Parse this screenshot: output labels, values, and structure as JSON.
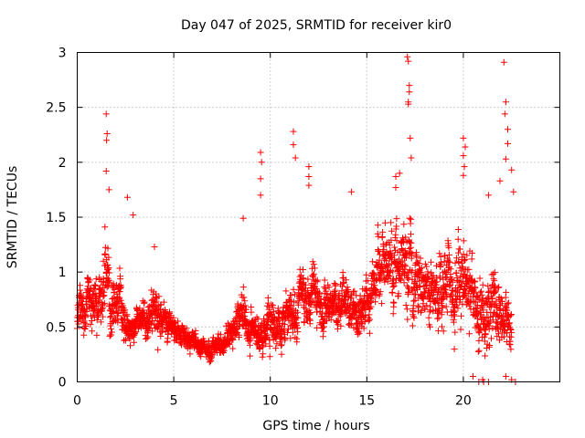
{
  "chart_data": {
    "type": "scatter",
    "title": "Day 047 of 2025, SRMTID for receiver kir0",
    "xlabel": "GPS time / hours",
    "ylabel": "SRMTID / TECUs",
    "xlim": [
      0,
      25
    ],
    "ylim": [
      0,
      3
    ],
    "grid": true,
    "marker": "+",
    "color": "#ff0000",
    "xtick_values": [
      0,
      5,
      10,
      15,
      20
    ],
    "xtick_labels": [
      "0",
      "5",
      "10",
      "15",
      "20"
    ],
    "ytick_values": [
      0,
      0.5,
      1,
      1.5,
      2,
      2.5,
      3
    ],
    "ytick_labels": [
      "0",
      "0.5",
      "1",
      "1.5",
      "2",
      "2.5",
      "3"
    ],
    "sample_interval_hours": 0.0083,
    "series": [
      {
        "name": "kir0",
        "profile_hours": [
          0,
          0.5,
          1,
          1.5,
          2,
          2.5,
          3,
          3.5,
          4,
          4.5,
          5,
          5.5,
          6,
          6.5,
          7,
          7.5,
          8,
          8.5,
          9,
          9.5,
          10,
          10.5,
          11,
          11.5,
          12,
          12.5,
          13,
          13.5,
          14,
          14.5,
          15,
          15.5,
          16,
          16.5,
          17,
          17.5,
          18,
          18.5,
          19,
          19.5,
          20,
          20.5,
          21,
          21.5,
          22,
          22.5
        ],
        "profile_mean": [
          0.6,
          0.7,
          0.8,
          0.85,
          0.75,
          0.6,
          0.5,
          0.55,
          0.7,
          0.55,
          0.45,
          0.42,
          0.38,
          0.32,
          0.3,
          0.35,
          0.5,
          0.65,
          0.55,
          0.45,
          0.55,
          0.55,
          0.6,
          0.7,
          0.8,
          0.75,
          0.7,
          0.75,
          0.7,
          0.6,
          0.75,
          0.9,
          1.0,
          1.1,
          1.05,
          0.95,
          0.8,
          0.85,
          0.9,
          0.95,
          0.9,
          0.8,
          0.6,
          0.7,
          0.5,
          0.5
        ],
        "profile_spread": [
          0.25,
          0.3,
          0.35,
          0.45,
          0.35,
          0.25,
          0.2,
          0.2,
          0.3,
          0.2,
          0.15,
          0.14,
          0.12,
          0.1,
          0.1,
          0.12,
          0.22,
          0.3,
          0.25,
          0.2,
          0.25,
          0.25,
          0.3,
          0.3,
          0.3,
          0.3,
          0.3,
          0.3,
          0.3,
          0.25,
          0.3,
          0.4,
          0.45,
          0.5,
          0.5,
          0.45,
          0.4,
          0.4,
          0.45,
          0.5,
          0.5,
          0.45,
          0.4,
          0.45,
          0.3,
          0.3
        ],
        "outliers": [
          [
            1.5,
            2.44
          ],
          [
            1.55,
            2.26
          ],
          [
            1.52,
            2.2
          ],
          [
            1.5,
            1.92
          ],
          [
            1.65,
            1.75
          ],
          [
            2.6,
            1.68
          ],
          [
            2.9,
            1.52
          ],
          [
            4.0,
            1.23
          ],
          [
            8.6,
            1.49
          ],
          [
            9.5,
            2.09
          ],
          [
            9.55,
            2.0
          ],
          [
            9.5,
            1.85
          ],
          [
            9.5,
            1.7
          ],
          [
            11.2,
            2.28
          ],
          [
            11.2,
            2.16
          ],
          [
            11.3,
            2.04
          ],
          [
            12.0,
            1.96
          ],
          [
            12.0,
            1.87
          ],
          [
            12.0,
            1.79
          ],
          [
            14.2,
            1.73
          ],
          [
            17.1,
            2.96
          ],
          [
            17.15,
            2.92
          ],
          [
            17.2,
            2.7
          ],
          [
            17.2,
            2.64
          ],
          [
            17.15,
            2.55
          ],
          [
            17.15,
            2.53
          ],
          [
            17.25,
            2.22
          ],
          [
            17.3,
            2.04
          ],
          [
            16.5,
            1.87
          ],
          [
            16.5,
            1.77
          ],
          [
            16.7,
            1.9
          ],
          [
            20.0,
            2.22
          ],
          [
            20.1,
            2.14
          ],
          [
            20.0,
            2.06
          ],
          [
            20.05,
            1.96
          ],
          [
            20.0,
            1.88
          ],
          [
            22.1,
            2.91
          ],
          [
            22.2,
            2.55
          ],
          [
            22.15,
            2.44
          ],
          [
            22.3,
            2.3
          ],
          [
            22.3,
            2.17
          ],
          [
            22.2,
            2.03
          ],
          [
            22.5,
            1.93
          ],
          [
            21.9,
            1.83
          ],
          [
            22.6,
            1.73
          ],
          [
            21.3,
            1.7
          ]
        ],
        "low_points": [
          [
            20.8,
            0.0
          ],
          [
            21.0,
            0.02
          ],
          [
            21.05,
            0.0
          ],
          [
            21.3,
            0.0
          ],
          [
            20.5,
            0.05
          ],
          [
            22.5,
            0.02
          ],
          [
            22.7,
            0.0
          ],
          [
            22.2,
            0.05
          ]
        ]
      }
    ]
  }
}
